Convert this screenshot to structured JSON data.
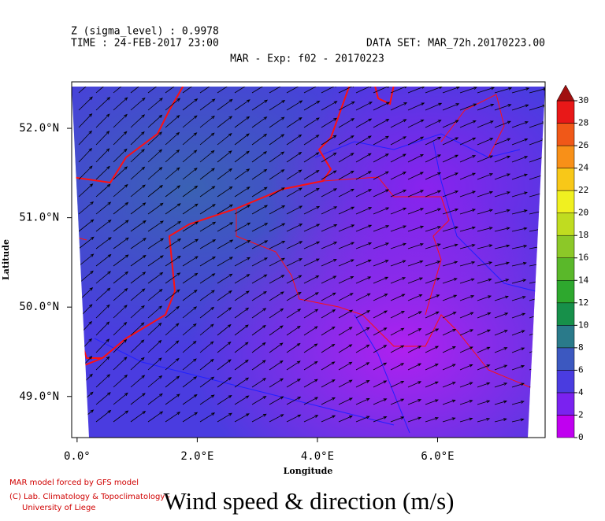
{
  "header": {
    "level": "Z (sigma_level) : 0.9978",
    "time": "TIME : 24-FEB-2017 23:00",
    "dataset": "DATA SET: MAR_72h.20170223.00",
    "subtitle": "MAR - Exp: f02 - 20170223"
  },
  "map": {
    "x_label": "Longitude",
    "y_label": "Latitude",
    "xlim": [
      -0.09,
      7.79
    ],
    "ylim": [
      48.54,
      52.52
    ],
    "xticks": [
      {
        "value": 0,
        "label": "0.0°"
      },
      {
        "value": 2,
        "label": "2.0°E"
      },
      {
        "value": 4,
        "label": "4.0°E"
      },
      {
        "value": 6,
        "label": "6.0°E"
      }
    ],
    "yticks": [
      {
        "value": 49,
        "label": "49.0°N"
      },
      {
        "value": 50,
        "label": "50.0°N"
      },
      {
        "value": 51,
        "label": "51.0°N"
      },
      {
        "value": 52,
        "label": "52.0°N"
      }
    ]
  },
  "colorbar": {
    "ticks": [
      0,
      2,
      4,
      6,
      8,
      10,
      12,
      14,
      16,
      18,
      20,
      22,
      24,
      26,
      28,
      30
    ],
    "colors": [
      "#c000f0",
      "#7a22f0",
      "#4a3ce0",
      "#3c58c0",
      "#2a7a8a",
      "#17904a",
      "#2ea82e",
      "#5ab82a",
      "#8cc828",
      "#c0dc20",
      "#f0f020",
      "#f8c818",
      "#f89018",
      "#f05818",
      "#e81818"
    ],
    "over_color": "#a01010"
  },
  "footer": {
    "credit1": "MAR model forced by GFS model",
    "credit2": "(C) Lab. Climatology & Topoclimatology -",
    "credit3": "University of Liege",
    "title": "Wind speed & direction (m/s)"
  }
}
